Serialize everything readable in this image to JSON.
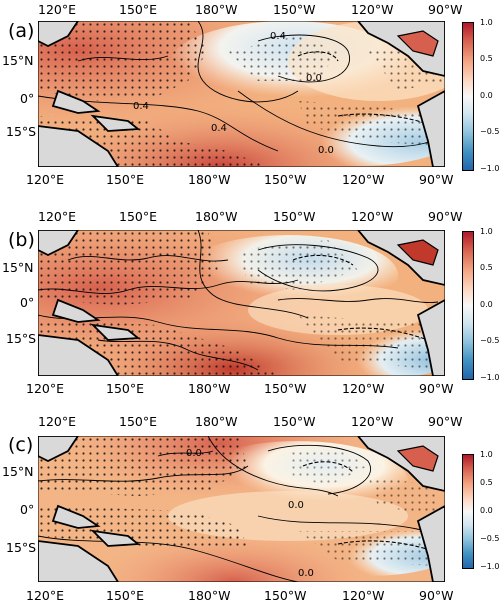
{
  "panels": [
    {
      "label": "(a)"
    },
    {
      "label": "(b)"
    },
    {
      "label": "(c)"
    }
  ],
  "axes": {
    "lon_labels": [
      "120°E",
      "150°E",
      "180°W",
      "150°W",
      "120°W",
      "90°W"
    ],
    "lat_labels": [
      "15°N",
      "0°",
      "15°S"
    ]
  },
  "colorbar": {
    "ticks": [
      "1.0",
      "0.5",
      "0.0",
      "−0.5",
      "−1.0"
    ],
    "colors": [
      "#b2182b",
      "#d6604d",
      "#f4a582",
      "#fddbc7",
      "#f7f7f7",
      "#d1e5f0",
      "#92c5de",
      "#4393c3",
      "#2166ac"
    ]
  },
  "contour_labels": {
    "a": [
      "0.4",
      "0.4",
      "0.4",
      "0.0",
      "0.0"
    ],
    "b": [],
    "c": [
      "0.0",
      "0.0",
      "0.0"
    ]
  },
  "land_color": "#d9d9d9"
}
